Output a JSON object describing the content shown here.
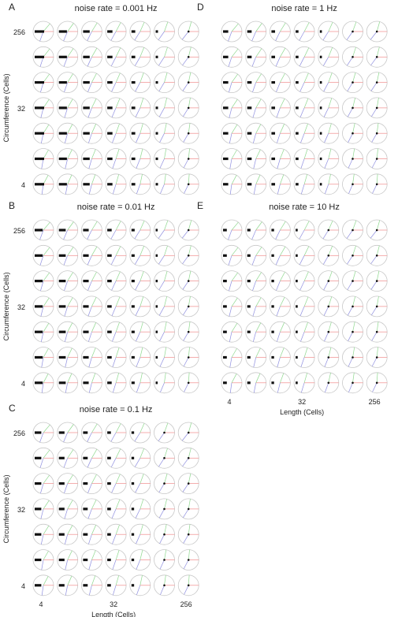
{
  "chart_data": {
    "type": "polar-glyph-grid",
    "shared": {
      "rows": 7,
      "cols": 7,
      "y_tick_labels": [
        "256",
        "32",
        "4"
      ],
      "x_tick_labels": [
        "4",
        "32",
        "256"
      ],
      "ylabel": "Circumference (Cells)",
      "xlabel": "Length (Cells)",
      "colors": {
        "circle": "#c8c8c8",
        "red_spoke": "#f08a8a",
        "green_spoke": "#8fd88f",
        "blue_spoke": "#8f8fe0",
        "marks": "#111111"
      }
    },
    "panels": [
      {
        "letter": "A",
        "title": "noise rate = 0.001 Hz",
        "show_ylabel": true,
        "show_xlabel": false
      },
      {
        "letter": "B",
        "title": "noise rate = 0.01 Hz",
        "show_ylabel": true,
        "show_xlabel": false
      },
      {
        "letter": "C",
        "title": "noise rate = 0.1 Hz",
        "show_ylabel": true,
        "show_xlabel": true
      },
      {
        "letter": "D",
        "title": "noise rate = 1 Hz",
        "show_ylabel": false,
        "show_xlabel": false
      },
      {
        "letter": "E",
        "title": "noise rate = 10 Hz",
        "show_ylabel": false,
        "show_xlabel": true
      }
    ]
  }
}
